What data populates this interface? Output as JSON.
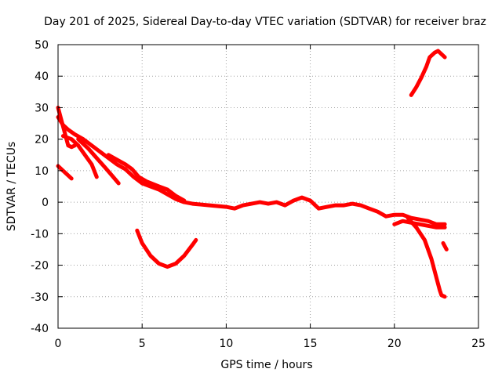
{
  "chart_data": {
    "type": "scatter",
    "title": "Day 201 of 2025, Sidereal Day-to-day VTEC variation (SDTVAR) for receiver braz",
    "xlabel": "GPS time / hours",
    "ylabel": "SDTVAR / TECUs",
    "xlim": [
      0,
      25
    ],
    "ylim": [
      -40,
      50
    ],
    "xticks": [
      0,
      5,
      10,
      15,
      20,
      25
    ],
    "yticks": [
      -40,
      -30,
      -20,
      -10,
      0,
      10,
      20,
      30,
      40,
      50
    ],
    "grid": true,
    "color": "#ff0000",
    "series": [
      {
        "name": "main-trend",
        "points": [
          [
            0.0,
            27
          ],
          [
            0.3,
            24.5
          ],
          [
            0.6,
            23
          ],
          [
            1.0,
            21.5
          ],
          [
            1.5,
            20
          ],
          [
            2.0,
            18
          ],
          [
            2.5,
            16
          ],
          [
            3.0,
            14
          ],
          [
            3.5,
            12
          ],
          [
            4.0,
            10.5
          ],
          [
            4.5,
            8
          ],
          [
            5.0,
            6
          ],
          [
            5.5,
            5
          ],
          [
            6.0,
            4
          ],
          [
            6.5,
            2.5
          ],
          [
            7.0,
            1
          ],
          [
            7.5,
            0
          ],
          [
            8.0,
            -0.5
          ],
          [
            9.0,
            -1
          ],
          [
            10.0,
            -1.5
          ],
          [
            10.5,
            -2
          ],
          [
            11.0,
            -1
          ],
          [
            11.5,
            -0.5
          ],
          [
            12.0,
            0
          ],
          [
            12.5,
            -0.5
          ],
          [
            13.0,
            0
          ],
          [
            13.5,
            -1
          ],
          [
            14.0,
            0.5
          ],
          [
            14.5,
            1.5
          ],
          [
            15.0,
            0.5
          ],
          [
            15.5,
            -2
          ],
          [
            16.0,
            -1.5
          ],
          [
            16.5,
            -1
          ],
          [
            17.0,
            -1
          ],
          [
            17.5,
            -0.5
          ],
          [
            18.0,
            -1
          ],
          [
            18.5,
            -2
          ],
          [
            19.0,
            -3
          ],
          [
            19.5,
            -4.5
          ],
          [
            20.0,
            -4
          ],
          [
            20.5,
            -4
          ],
          [
            21.0,
            -5
          ],
          [
            21.5,
            -5.5
          ],
          [
            22.0,
            -6
          ],
          [
            22.5,
            -7
          ],
          [
            23.0,
            -7
          ]
        ]
      },
      {
        "name": "upper-start",
        "points": [
          [
            0.0,
            30
          ],
          [
            0.2,
            26
          ],
          [
            0.4,
            22
          ],
          [
            0.6,
            18
          ],
          [
            0.8,
            17.5
          ],
          [
            1.0,
            18
          ]
        ]
      },
      {
        "name": "secondary-1",
        "points": [
          [
            0.3,
            21
          ],
          [
            0.8,
            20
          ],
          [
            1.2,
            18
          ],
          [
            1.6,
            15
          ],
          [
            2.0,
            12
          ],
          [
            2.3,
            8
          ]
        ]
      },
      {
        "name": "secondary-2",
        "points": [
          [
            1.2,
            20
          ],
          [
            1.8,
            17
          ],
          [
            2.3,
            14
          ],
          [
            2.8,
            11
          ],
          [
            3.2,
            8.5
          ],
          [
            3.6,
            6
          ]
        ]
      },
      {
        "name": "secondary-3",
        "points": [
          [
            3.0,
            15
          ],
          [
            3.5,
            13.5
          ],
          [
            4.0,
            12
          ],
          [
            4.4,
            10.5
          ],
          [
            4.8,
            8
          ],
          [
            5.3,
            6.5
          ],
          [
            6.0,
            5
          ],
          [
            6.5,
            4
          ],
          [
            7.0,
            2
          ],
          [
            7.5,
            0.5
          ]
        ]
      },
      {
        "name": "low-start",
        "points": [
          [
            0.0,
            11.5
          ],
          [
            0.3,
            10
          ],
          [
            0.6,
            8.5
          ],
          [
            0.8,
            7.5
          ]
        ]
      },
      {
        "name": "negative-arc",
        "points": [
          [
            4.7,
            -9
          ],
          [
            5.0,
            -13
          ],
          [
            5.5,
            -17
          ],
          [
            6.0,
            -19.5
          ],
          [
            6.5,
            -20.5
          ],
          [
            7.0,
            -19.5
          ],
          [
            7.5,
            -17
          ],
          [
            8.0,
            -13.5
          ],
          [
            8.2,
            -12
          ]
        ]
      },
      {
        "name": "late-drop",
        "points": [
          [
            20.8,
            -5
          ],
          [
            21.3,
            -8
          ],
          [
            21.8,
            -12
          ],
          [
            22.2,
            -18
          ],
          [
            22.5,
            -24
          ],
          [
            22.7,
            -28
          ],
          [
            22.8,
            -29.5
          ],
          [
            23.0,
            -30
          ]
        ]
      },
      {
        "name": "late-lower",
        "points": [
          [
            20.0,
            -7
          ],
          [
            20.5,
            -6
          ],
          [
            21.0,
            -6.5
          ],
          [
            21.5,
            -7
          ],
          [
            22.0,
            -7.5
          ],
          [
            22.5,
            -8
          ],
          [
            23.0,
            -8
          ]
        ]
      },
      {
        "name": "late-short",
        "points": [
          [
            22.9,
            -13
          ],
          [
            23.0,
            -14
          ],
          [
            23.1,
            -15
          ]
        ]
      },
      {
        "name": "late-rise",
        "points": [
          [
            21.0,
            34
          ],
          [
            21.3,
            36.5
          ],
          [
            21.6,
            39.5
          ],
          [
            21.9,
            43
          ],
          [
            22.1,
            46
          ],
          [
            22.4,
            47.5
          ],
          [
            22.6,
            48
          ],
          [
            22.8,
            47
          ],
          [
            23.0,
            46
          ]
        ]
      }
    ]
  }
}
